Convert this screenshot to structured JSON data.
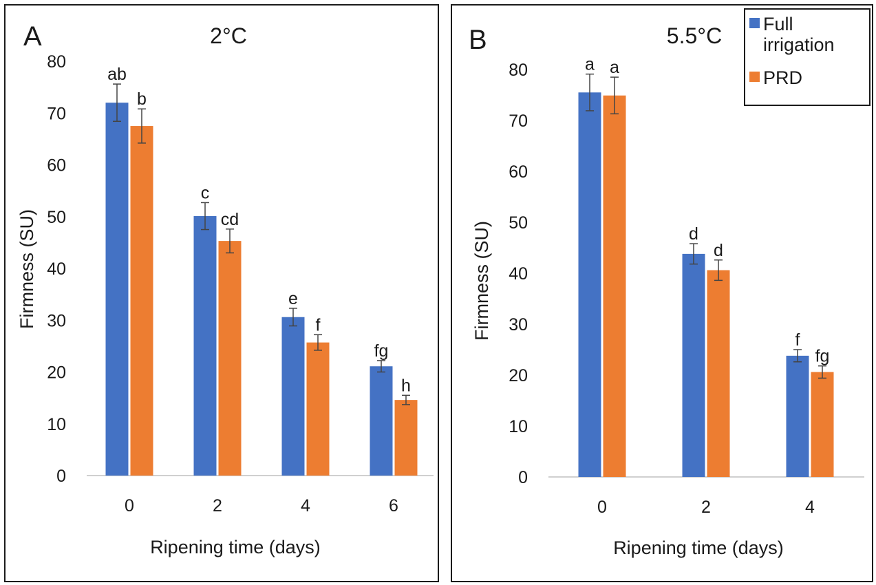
{
  "chart_data": [
    {
      "type": "bar",
      "panel_label": "A",
      "title": "2°C",
      "xlabel": "Ripening time (days)",
      "ylabel": "Firmness (SU)",
      "ylim": [
        0,
        80
      ],
      "yticks": [
        "0",
        "10",
        "20",
        "30",
        "40",
        "50",
        "60",
        "70",
        "80"
      ],
      "categories": [
        "0",
        "2",
        "4",
        "6"
      ],
      "grid": false,
      "series": [
        {
          "name": "Full irrigation",
          "color": "#4472C4",
          "values": [
            72.0,
            50.1,
            30.6,
            21.1
          ],
          "errors": [
            3.6,
            2.6,
            1.7,
            1.1
          ],
          "letters": [
            "ab",
            "c",
            "e",
            "fg"
          ]
        },
        {
          "name": "PRD",
          "color": "#ED7D31",
          "values": [
            67.5,
            45.3,
            25.7,
            14.6
          ],
          "errors": [
            3.3,
            2.3,
            1.5,
            0.9
          ],
          "letters": [
            "b",
            "cd",
            "f",
            "h"
          ]
        }
      ]
    },
    {
      "type": "bar",
      "panel_label": "B",
      "title": "5.5°C",
      "xlabel": "Ripening time (days)",
      "ylabel": "Firmness (SU)",
      "ylim": [
        0,
        80
      ],
      "yticks": [
        "0",
        "10",
        "20",
        "30",
        "40",
        "50",
        "60",
        "70",
        "80"
      ],
      "categories": [
        "0",
        "2",
        "4"
      ],
      "grid": false,
      "legend_position": "top-right",
      "series": [
        {
          "name": "Full irrigation",
          "color": "#4472C4",
          "values": [
            75.5,
            43.8,
            23.8
          ],
          "errors": [
            3.6,
            2.0,
            1.2
          ],
          "letters": [
            "a",
            "d",
            "f"
          ]
        },
        {
          "name": "PRD",
          "color": "#ED7D31",
          "values": [
            74.9,
            40.6,
            20.6
          ],
          "errors": [
            3.6,
            2.0,
            1.2
          ],
          "letters": [
            "a",
            "d",
            "fg"
          ]
        }
      ]
    }
  ],
  "legend": {
    "items": [
      {
        "label": "Full irrigation",
        "color": "#4472C4"
      },
      {
        "label": "PRD",
        "color": "#ED7D31"
      }
    ]
  }
}
